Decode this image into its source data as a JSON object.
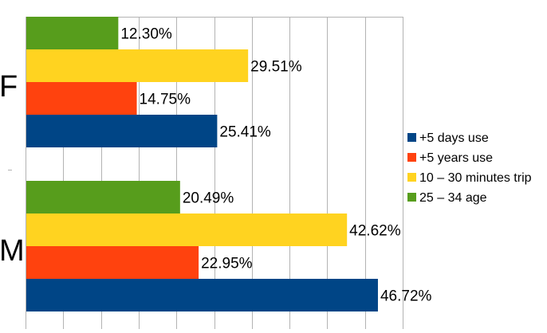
{
  "chart_data": {
    "type": "bar",
    "orientation": "horizontal",
    "categories": [
      "F",
      "M"
    ],
    "series": [
      {
        "name": "+5 days use",
        "color": "#004586",
        "values": [
          25.41,
          46.72
        ],
        "labels": [
          "25.41%",
          "46.72%"
        ]
      },
      {
        "name": "+5 years use",
        "color": "#ff420e",
        "values": [
          14.75,
          22.95
        ],
        "labels": [
          "14.75%",
          "22.95%"
        ]
      },
      {
        "name": "10 – 30 minutes trip",
        "color": "#ffd320",
        "values": [
          29.51,
          42.62
        ],
        "labels": [
          "29.51%",
          "42.62%"
        ]
      },
      {
        "name": "25 – 34 age",
        "color": "#579d1c",
        "values": [
          12.3,
          20.49
        ],
        "labels": [
          "12.30%",
          "20.49%"
        ]
      }
    ],
    "xlim": [
      0,
      50
    ],
    "grid": true,
    "legend_position": "right",
    "title": "",
    "xlabel": "",
    "ylabel": ""
  }
}
